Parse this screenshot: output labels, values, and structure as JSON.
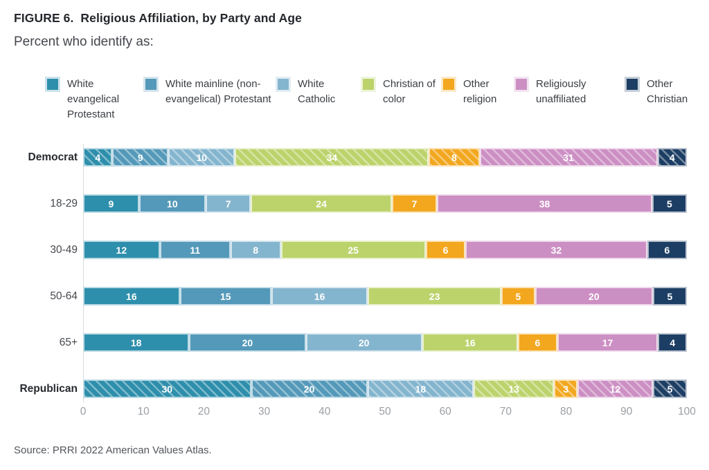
{
  "figure": {
    "title": "FIGURE 6.  Religious Affiliation, by Party and Age",
    "subtitle": "Percent who identify as:",
    "source": "Source: PRRI 2022 American Values Atlas."
  },
  "chart_data": {
    "type": "bar",
    "orientation": "horizontal",
    "stacked": true,
    "title": "FIGURE 6. Religious Affiliation, by Party and Age",
    "subtitle": "Percent who identify as:",
    "xlabel": "",
    "ylabel": "",
    "xlim": [
      0,
      100
    ],
    "x_ticks": [
      0,
      10,
      20,
      30,
      40,
      50,
      60,
      70,
      80,
      90,
      100
    ],
    "grid": false,
    "legend_position": "top",
    "categories": [
      "Democrat",
      "18-29",
      "30-49",
      "50-64",
      "65+",
      "Republican"
    ],
    "category_styles": [
      {
        "bold": true,
        "hatched": true
      },
      {
        "bold": false,
        "hatched": false
      },
      {
        "bold": false,
        "hatched": false
      },
      {
        "bold": false,
        "hatched": false
      },
      {
        "bold": false,
        "hatched": false
      },
      {
        "bold": true,
        "hatched": true
      }
    ],
    "series": [
      {
        "name": "White evangelical Protestant",
        "color": "#2E8FAC",
        "values": [
          4,
          9,
          12,
          16,
          18,
          30
        ]
      },
      {
        "name": "White mainline (non-evangelical) Protestant",
        "color": "#5499B9",
        "values": [
          9,
          10,
          11,
          15,
          20,
          20
        ]
      },
      {
        "name": "White Catholic",
        "color": "#84B5CE",
        "values": [
          10,
          7,
          8,
          16,
          20,
          18
        ]
      },
      {
        "name": "Christian of color",
        "color": "#BCD36C",
        "values": [
          34,
          24,
          25,
          23,
          16,
          13
        ]
      },
      {
        "name": "Other religion",
        "color": "#F2A71F",
        "values": [
          8,
          7,
          6,
          5,
          6,
          3
        ]
      },
      {
        "name": "Religiously unaffiliated",
        "color": "#CC8FC3",
        "values": [
          31,
          38,
          32,
          20,
          17,
          12
        ]
      },
      {
        "name": "Other Christian",
        "color": "#1D3E64",
        "values": [
          4,
          5,
          6,
          5,
          4,
          5
        ]
      }
    ]
  }
}
